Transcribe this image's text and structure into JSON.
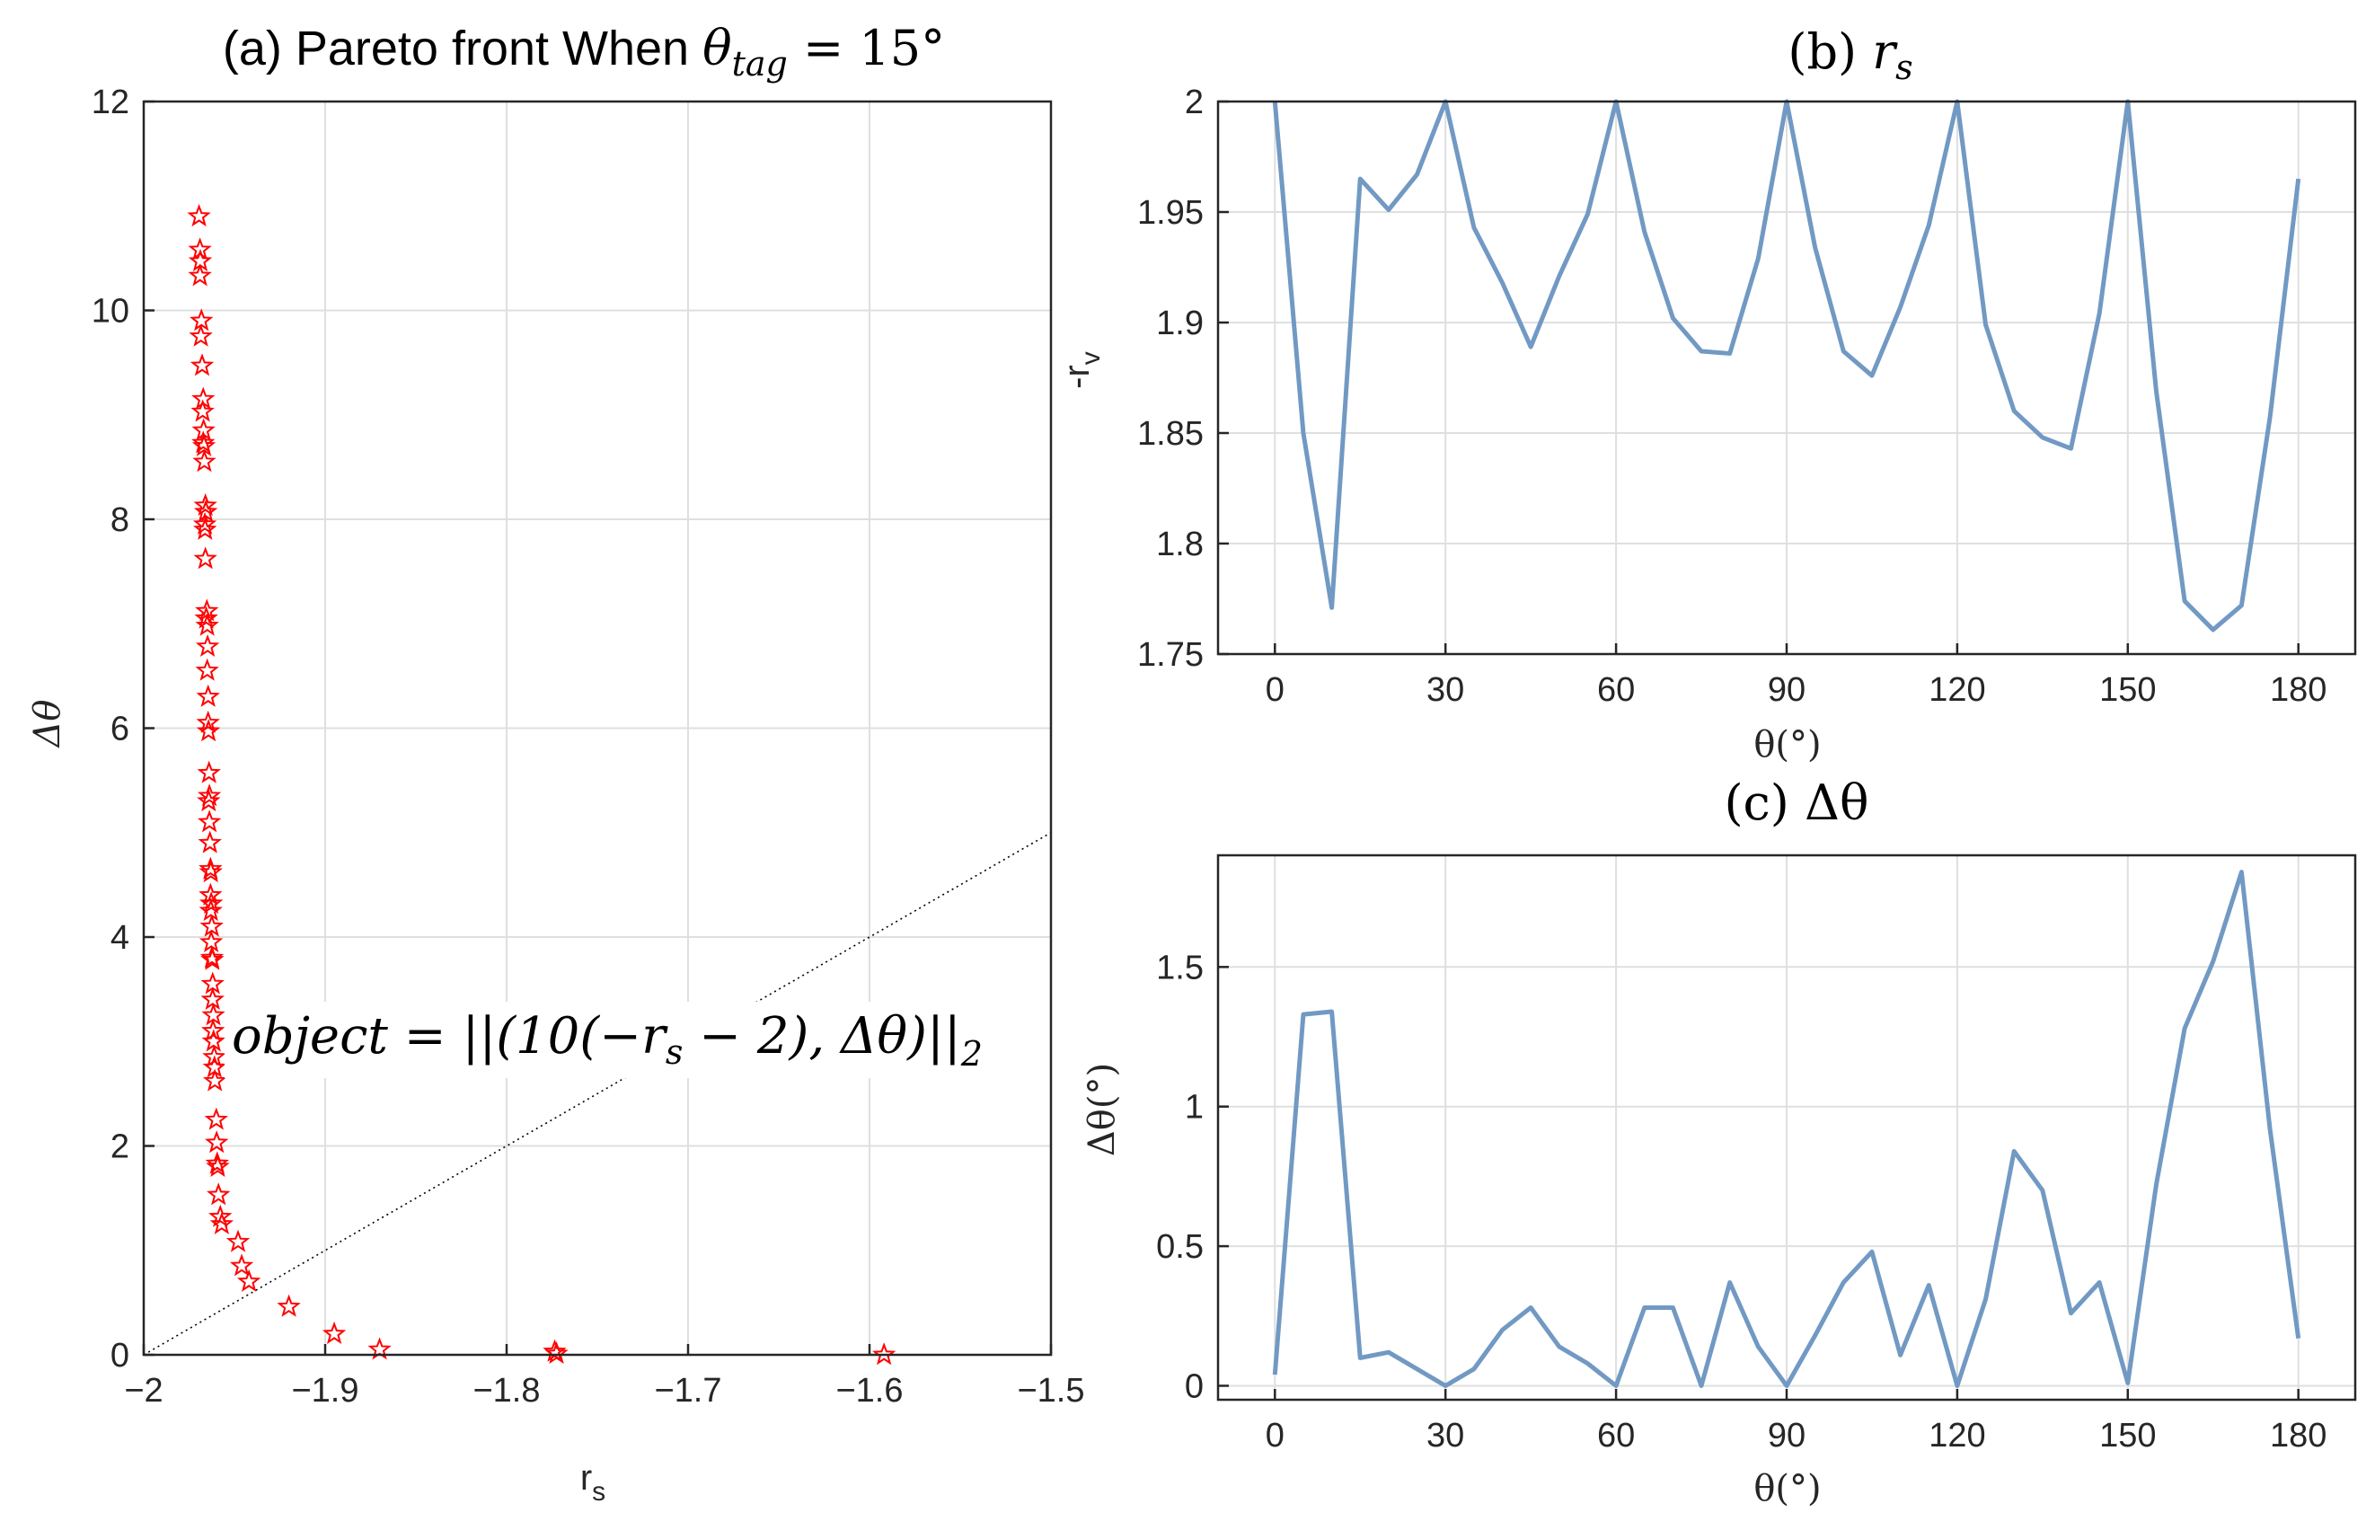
{
  "chart_data": [
    {
      "type": "scatter",
      "title": "(a) Pareto front When θ_tag = 15°",
      "title_parts": {
        "prefix": "(a) Pareto front When ",
        "theta": "θ",
        "sub": "tag",
        "suffix": " = 15°"
      },
      "xlabel": "r",
      "xlabel_sub": "s",
      "ylabel": "Δθ",
      "xlim": [
        -2,
        -1.5
      ],
      "ylim": [
        0,
        12
      ],
      "xticks": [
        "−2",
        "−1.9",
        "−1.8",
        "−1.7",
        "−1.6",
        "−1.5"
      ],
      "xtick_values": [
        -2,
        -1.9,
        -1.8,
        -1.7,
        -1.6,
        -1.5
      ],
      "yticks": [
        "0",
        "2",
        "4",
        "6",
        "8",
        "10",
        "12"
      ],
      "ytick_values": [
        0,
        2,
        4,
        6,
        8,
        10,
        12
      ],
      "grid": true,
      "marker": "pentagram",
      "marker_color": "#ff0000",
      "annotation": {
        "text": "object = ||(10(−r_s − 2), Δθ)||_2",
        "main": "object = ||(10(−r",
        "sub1": "s",
        "mid": " − 2), Δθ)||",
        "sub2": "2"
      },
      "reference_line": {
        "style": "dotted",
        "from": [
          -2,
          0
        ],
        "to": [
          -1.5,
          5
        ]
      },
      "points": [
        [
          -1.9695,
          10.9
        ],
        [
          -1.969,
          10.58
        ],
        [
          -1.9688,
          10.47
        ],
        [
          -1.969,
          10.33
        ],
        [
          -1.9682,
          9.9
        ],
        [
          -1.9685,
          9.75
        ],
        [
          -1.9678,
          9.47
        ],
        [
          -1.9672,
          9.15
        ],
        [
          -1.9675,
          9.03
        ],
        [
          -1.967,
          8.85
        ],
        [
          -1.9672,
          8.73
        ],
        [
          -1.9668,
          8.7
        ],
        [
          -1.9666,
          8.55
        ],
        [
          -1.966,
          8.13
        ],
        [
          -1.9658,
          8.07
        ],
        [
          -1.9663,
          7.95
        ],
        [
          -1.9662,
          7.9
        ],
        [
          -1.966,
          7.62
        ],
        [
          -1.9652,
          7.12
        ],
        [
          -1.9655,
          7.05
        ],
        [
          -1.965,
          6.98
        ],
        [
          -1.9648,
          6.78
        ],
        [
          -1.965,
          6.55
        ],
        [
          -1.9645,
          6.3
        ],
        [
          -1.9645,
          6.05
        ],
        [
          -1.9643,
          5.97
        ],
        [
          -1.964,
          5.57
        ],
        [
          -1.9638,
          5.35
        ],
        [
          -1.9642,
          5.3
        ],
        [
          -1.9638,
          5.1
        ],
        [
          -1.9635,
          4.9
        ],
        [
          -1.9632,
          4.65
        ],
        [
          -1.963,
          4.62
        ],
        [
          -1.9632,
          4.4
        ],
        [
          -1.9628,
          4.32
        ],
        [
          -1.963,
          4.25
        ],
        [
          -1.9625,
          4.1
        ],
        [
          -1.9628,
          3.95
        ],
        [
          -1.9624,
          3.8
        ],
        [
          -1.9622,
          3.78
        ],
        [
          -1.962,
          3.55
        ],
        [
          -1.962,
          3.4
        ],
        [
          -1.9616,
          3.25
        ],
        [
          -1.9618,
          3.1
        ],
        [
          -1.9615,
          3.0
        ],
        [
          -1.9612,
          2.85
        ],
        [
          -1.961,
          2.75
        ],
        [
          -1.9608,
          2.62
        ],
        [
          -1.96,
          2.25
        ],
        [
          -1.9598,
          2.03
        ],
        [
          -1.9595,
          1.83
        ],
        [
          -1.9592,
          1.8
        ],
        [
          -1.9588,
          1.53
        ],
        [
          -1.9578,
          1.32
        ],
        [
          -1.957,
          1.25
        ],
        [
          -1.948,
          1.08
        ],
        [
          -1.946,
          0.85
        ],
        [
          -1.942,
          0.7
        ],
        [
          -1.92,
          0.46
        ],
        [
          -1.895,
          0.2
        ],
        [
          -1.87,
          0.05
        ],
        [
          -1.7735,
          0.03
        ],
        [
          -1.7725,
          0.01
        ],
        [
          -1.592,
          0.0
        ]
      ]
    },
    {
      "type": "line",
      "title": "(b) r_s",
      "title_parts": {
        "prefix": "(b) ",
        "var": "r",
        "sub": "s"
      },
      "xlabel": "θ(°)",
      "ylabel": "-r",
      "ylabel_sub": "v",
      "xlim": [
        -10,
        190
      ],
      "ylim": [
        1.75,
        2.0
      ],
      "xticks": [
        "0",
        "30",
        "60",
        "90",
        "120",
        "150",
        "180"
      ],
      "xtick_values": [
        0,
        30,
        60,
        90,
        120,
        150,
        180
      ],
      "yticks": [
        "1.75",
        "1.8",
        "1.85",
        "1.9",
        "1.95",
        "2"
      ],
      "ytick_values": [
        1.75,
        1.8,
        1.85,
        1.9,
        1.95,
        2.0
      ],
      "grid": true,
      "color": "#7199c3",
      "x": [
        0,
        5,
        10,
        15,
        20,
        25,
        30,
        35,
        40,
        45,
        50,
        55,
        60,
        65,
        70,
        75,
        80,
        85,
        90,
        95,
        100,
        105,
        110,
        115,
        120,
        125,
        130,
        135,
        140,
        145,
        150,
        155,
        160,
        165,
        170,
        175,
        180
      ],
      "y": [
        2.0,
        1.85,
        1.771,
        1.965,
        1.951,
        1.967,
        2.0,
        1.943,
        1.918,
        1.889,
        1.921,
        1.949,
        2.0,
        1.941,
        1.902,
        1.887,
        1.886,
        1.929,
        2.0,
        1.934,
        1.887,
        1.876,
        1.907,
        1.944,
        2.0,
        1.899,
        1.86,
        1.848,
        1.843,
        1.904,
        2.0,
        1.869,
        1.774,
        1.761,
        1.772,
        1.857,
        1.965
      ]
    },
    {
      "type": "line",
      "title": "(c) Δθ",
      "title_parts": {
        "prefix": "(c) ",
        "var": "Δθ"
      },
      "xlabel": "θ(°)",
      "ylabel": "Δθ(°)",
      "xlim": [
        -10,
        190
      ],
      "ylim": [
        -0.05,
        1.9
      ],
      "xticks": [
        "0",
        "30",
        "60",
        "90",
        "120",
        "150",
        "180"
      ],
      "xtick_values": [
        0,
        30,
        60,
        90,
        120,
        150,
        180
      ],
      "yticks": [
        "0",
        "0.5",
        "1",
        "1.5"
      ],
      "ytick_values": [
        0,
        0.5,
        1,
        1.5
      ],
      "grid": true,
      "color": "#7199c3",
      "x": [
        0,
        5,
        10,
        15,
        20,
        25,
        30,
        35,
        40,
        45,
        50,
        55,
        60,
        65,
        70,
        75,
        80,
        85,
        90,
        95,
        100,
        105,
        110,
        115,
        120,
        125,
        130,
        135,
        140,
        145,
        150,
        155,
        160,
        165,
        170,
        175,
        180
      ],
      "y": [
        0.04,
        1.33,
        1.34,
        0.1,
        0.12,
        0.06,
        0.0,
        0.06,
        0.2,
        0.28,
        0.14,
        0.08,
        0.0,
        0.28,
        0.28,
        0.0,
        0.37,
        0.14,
        0.0,
        0.18,
        0.37,
        0.48,
        0.11,
        0.36,
        0.0,
        0.31,
        0.84,
        0.7,
        0.26,
        0.37,
        0.01,
        0.72,
        1.28,
        1.52,
        1.84,
        0.92,
        0.17
      ]
    }
  ]
}
